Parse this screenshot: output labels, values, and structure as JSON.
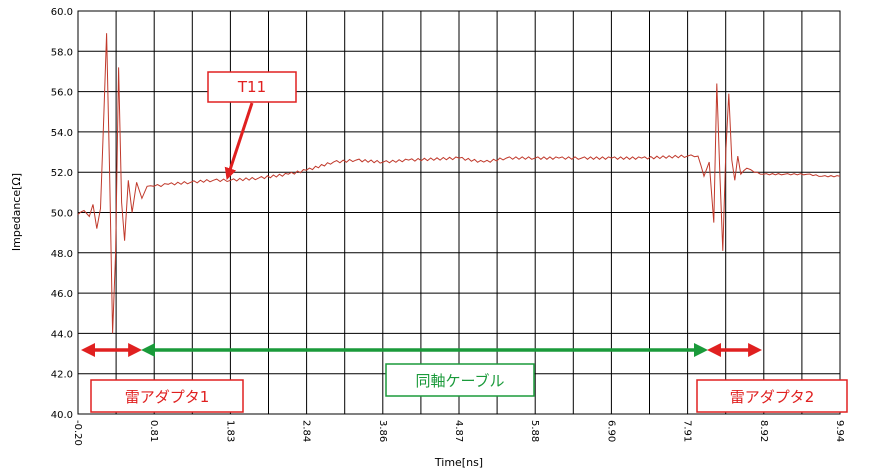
{
  "chart_data": {
    "type": "line",
    "xlabel": "Time[ns]",
    "ylabel": "Impedance[Ω]",
    "ylim": [
      40,
      60
    ],
    "y_ticks": [
      "40.0",
      "42.0",
      "44.0",
      "46.0",
      "48.0",
      "50.0",
      "52.0",
      "54.0",
      "56.0",
      "58.0",
      "60.0"
    ],
    "x_ticks": [
      "-0.20",
      "0.81",
      "1.83",
      "2.84",
      "3.86",
      "4.87",
      "5.88",
      "6.90",
      "7.91",
      "8.92",
      "9.94"
    ],
    "xlim": [
      -0.2,
      9.94
    ],
    "grid": true,
    "series": [
      {
        "name": "T11",
        "color": "#c0392b",
        "points": [
          [
            -0.2,
            49.9
          ],
          [
            -0.12,
            50.1
          ],
          [
            -0.05,
            49.8
          ],
          [
            0.0,
            50.4
          ],
          [
            0.05,
            49.2
          ],
          [
            0.1,
            50.2
          ],
          [
            0.14,
            54.5
          ],
          [
            0.18,
            58.9
          ],
          [
            0.22,
            52.0
          ],
          [
            0.26,
            44.0
          ],
          [
            0.3,
            48.0
          ],
          [
            0.34,
            57.2
          ],
          [
            0.38,
            50.5
          ],
          [
            0.42,
            48.6
          ],
          [
            0.47,
            51.6
          ],
          [
            0.52,
            50.0
          ],
          [
            0.58,
            51.5
          ],
          [
            0.65,
            50.7
          ],
          [
            0.72,
            51.3
          ],
          [
            0.81,
            51.3
          ],
          [
            1.0,
            51.4
          ],
          [
            1.3,
            51.5
          ],
          [
            1.6,
            51.6
          ],
          [
            1.83,
            51.6
          ],
          [
            2.2,
            51.7
          ],
          [
            2.6,
            51.9
          ],
          [
            2.84,
            52.1
          ],
          [
            3.2,
            52.5
          ],
          [
            3.5,
            52.6
          ],
          [
            3.86,
            52.5
          ],
          [
            4.2,
            52.6
          ],
          [
            4.87,
            52.7
          ],
          [
            5.2,
            52.5
          ],
          [
            5.5,
            52.7
          ],
          [
            5.88,
            52.7
          ],
          [
            6.2,
            52.7
          ],
          [
            6.5,
            52.7
          ],
          [
            6.9,
            52.7
          ],
          [
            7.3,
            52.7
          ],
          [
            7.91,
            52.8
          ],
          [
            8.05,
            52.8
          ],
          [
            8.13,
            51.8
          ],
          [
            8.2,
            52.5
          ],
          [
            8.26,
            49.5
          ],
          [
            8.3,
            56.4
          ],
          [
            8.34,
            52.0
          ],
          [
            8.38,
            48.1
          ],
          [
            8.42,
            53.0
          ],
          [
            8.46,
            55.9
          ],
          [
            8.5,
            52.6
          ],
          [
            8.54,
            51.6
          ],
          [
            8.58,
            52.8
          ],
          [
            8.62,
            51.9
          ],
          [
            8.7,
            52.2
          ],
          [
            8.8,
            52.0
          ],
          [
            8.92,
            51.9
          ],
          [
            9.2,
            51.9
          ],
          [
            9.5,
            51.9
          ],
          [
            9.7,
            51.8
          ],
          [
            9.94,
            51.8
          ]
        ]
      }
    ],
    "annotations": [
      {
        "label": "T11",
        "color": "#e02020",
        "points_to": [
          1.83,
          51.6
        ]
      },
      {
        "label": "雷アダプタ1",
        "color": "#e02020",
        "x_range": [
          -0.2,
          0.6
        ]
      },
      {
        "label": "同軸ケーブル",
        "color": "#1a9a3a",
        "x_range": [
          0.6,
          8.13
        ]
      },
      {
        "label": "雷アダプタ2",
        "color": "#e02020",
        "x_range": [
          8.13,
          8.85
        ]
      }
    ]
  }
}
